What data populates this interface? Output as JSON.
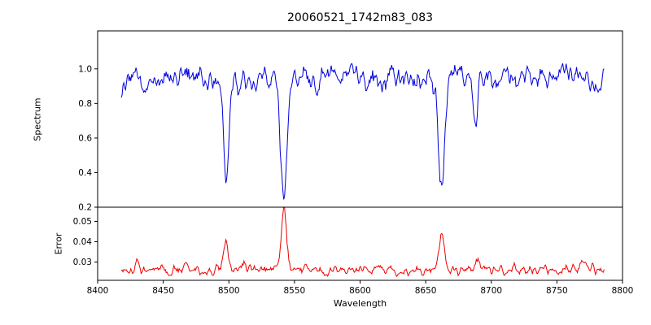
{
  "chart_data": {
    "type": "line",
    "title": "20060521_1742m83_083",
    "xlabel": "Wavelength",
    "xlim": [
      8400,
      8800
    ],
    "xticks": [
      8400,
      8450,
      8500,
      8550,
      8600,
      8650,
      8700,
      8750,
      8800
    ],
    "x_data_range": [
      8418,
      8786
    ],
    "grid": false,
    "legend": "none",
    "seed": 12,
    "n_points": 560,
    "panels": [
      {
        "name": "spectrum",
        "ylabel": "Spectrum",
        "color": "#0000dd",
        "ylim": [
          0.2,
          1.22
        ],
        "yticks": [
          0.2,
          0.4,
          0.6,
          0.8,
          1.0
        ],
        "ytick_decimals": 1,
        "continuum": 0.955,
        "noise_amplitude": 0.035,
        "absorption_lines": [
          {
            "center": 8498,
            "depth": 0.58,
            "width": 2.0
          },
          {
            "center": 8542,
            "depth": 0.72,
            "width": 2.6
          },
          {
            "center": 8662,
            "depth": 0.655,
            "width": 2.3
          },
          {
            "center": 8688,
            "depth": 0.335,
            "width": 1.6
          }
        ]
      },
      {
        "name": "error",
        "ylabel": "Error",
        "color": "#ee0000",
        "ylim": [
          0.021,
          0.057
        ],
        "yticks": [
          0.03,
          0.04,
          0.05
        ],
        "ytick_decimals": 2,
        "baseline": 0.0263,
        "noise_amplitude": 0.0012,
        "peaks": [
          {
            "center": 8430,
            "height": 0.004,
            "width": 1.5
          },
          {
            "center": 8466,
            "height": 0.0025,
            "width": 1.5
          },
          {
            "center": 8498,
            "height": 0.013,
            "width": 1.8
          },
          {
            "center": 8512,
            "height": 0.003,
            "width": 1.5
          },
          {
            "center": 8542,
            "height": 0.0285,
            "width": 2.0
          },
          {
            "center": 8662,
            "height": 0.018,
            "width": 2.0
          },
          {
            "center": 8690,
            "height": 0.006,
            "width": 1.5
          },
          {
            "center": 8770,
            "height": 0.0035,
            "width": 1.5
          }
        ]
      }
    ]
  }
}
